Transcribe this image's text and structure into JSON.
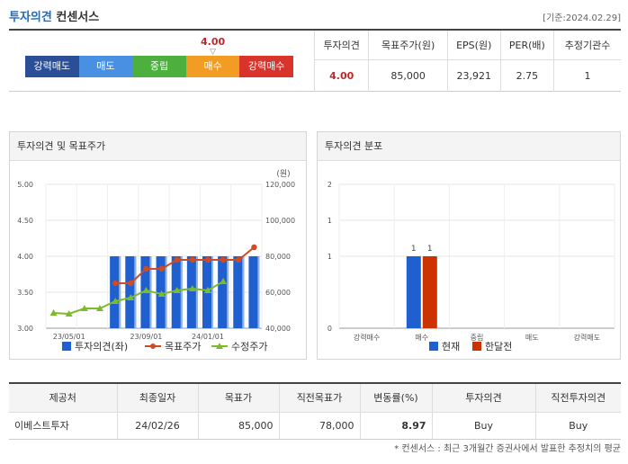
{
  "header": {
    "title_part1": "투자의견",
    "title_part2": "컨센서스",
    "date": "[기준:2024.02.29]"
  },
  "gauge": {
    "score": "4.00",
    "marker": "▽",
    "score_value": 4.0,
    "segments": [
      {
        "label": "강력매도",
        "color": "#2b4e96"
      },
      {
        "label": "매도",
        "color": "#4a90e2"
      },
      {
        "label": "중립",
        "color": "#4caf3e"
      },
      {
        "label": "매수",
        "color": "#f39c24"
      },
      {
        "label": "강력매수",
        "color": "#d9342b"
      }
    ]
  },
  "summary": {
    "headers": [
      "투자의견",
      "목표주가(원)",
      "EPS(원)",
      "PER(배)",
      "추정기관수"
    ],
    "values": [
      "4.00",
      "85,000",
      "23,921",
      "2.75",
      "1"
    ]
  },
  "left_chart": {
    "title": "투자의견 및 목표주가",
    "unit": "(원)",
    "legend": [
      "투자의견(좌)",
      "목표주가",
      "수정주가"
    ]
  },
  "right_chart": {
    "title": "투자의견 분포",
    "legend": [
      "현재",
      "한달전"
    ]
  },
  "chart_data": [
    {
      "type": "bar",
      "title": "투자의견 및 목표주가",
      "x_tick_labels": [
        "23/05/01",
        "23/09/01",
        "24/01/01"
      ],
      "y_left_ticks": [
        "5.00",
        "4.50",
        "4.00",
        "3.50",
        "3.00"
      ],
      "y_left_range": [
        3.0,
        5.0
      ],
      "y_right_ticks": [
        "120,000",
        "100,000",
        "80,000",
        "60,000",
        "40,000"
      ],
      "y_right_range": [
        40000,
        120000
      ],
      "series": [
        {
          "name": "투자의견(좌)",
          "kind": "bar",
          "axis": "left",
          "color": "#1f5fcf",
          "values": [
            null,
            null,
            null,
            null,
            4.0,
            4.0,
            4.0,
            4.0,
            4.0,
            4.0,
            4.0,
            4.0,
            4.0,
            4.0
          ]
        },
        {
          "name": "목표주가",
          "kind": "line",
          "axis": "right",
          "color": "#d24a1f",
          "values": [
            null,
            null,
            null,
            null,
            65000,
            65000,
            73000,
            73000,
            78000,
            78000,
            78000,
            78000,
            78000,
            85000
          ]
        },
        {
          "name": "수정주가",
          "kind": "line",
          "axis": "right",
          "color": "#7cbb2a",
          "values": [
            48500,
            48000,
            51000,
            51000,
            55000,
            57000,
            61000,
            59000,
            61000,
            62000,
            61000,
            66000
          ]
        }
      ],
      "grid": true,
      "legend_position": "bottom"
    },
    {
      "type": "bar",
      "title": "투자의견 분포",
      "categories": [
        "강력매수",
        "매수",
        "중립",
        "매도",
        "강력매도"
      ],
      "y_ticks": [
        "2",
        "1",
        "1",
        "0"
      ],
      "y_range": [
        0,
        2
      ],
      "series": [
        {
          "name": "현재",
          "color": "#1f5fcf",
          "values": [
            0,
            1,
            0,
            0,
            0
          ]
        },
        {
          "name": "한달전",
          "color": "#cc3300",
          "values": [
            0,
            1,
            0,
            0,
            0
          ]
        }
      ],
      "data_labels": [
        "1",
        "1"
      ],
      "grid": true,
      "legend_position": "bottom"
    }
  ],
  "broker_table": {
    "headers": [
      "제공처",
      "최종일자",
      "목표가",
      "직전목표가",
      "변동률(%)",
      "투자의견",
      "직전투자의견"
    ],
    "rows": [
      [
        "이베스트투자",
        "24/02/26",
        "85,000",
        "78,000",
        "8.97",
        "Buy",
        "Buy"
      ]
    ]
  },
  "footnote": "* 컨센서스 : 최근 3개월간 증권사에서 발표한 추정치의 평균"
}
